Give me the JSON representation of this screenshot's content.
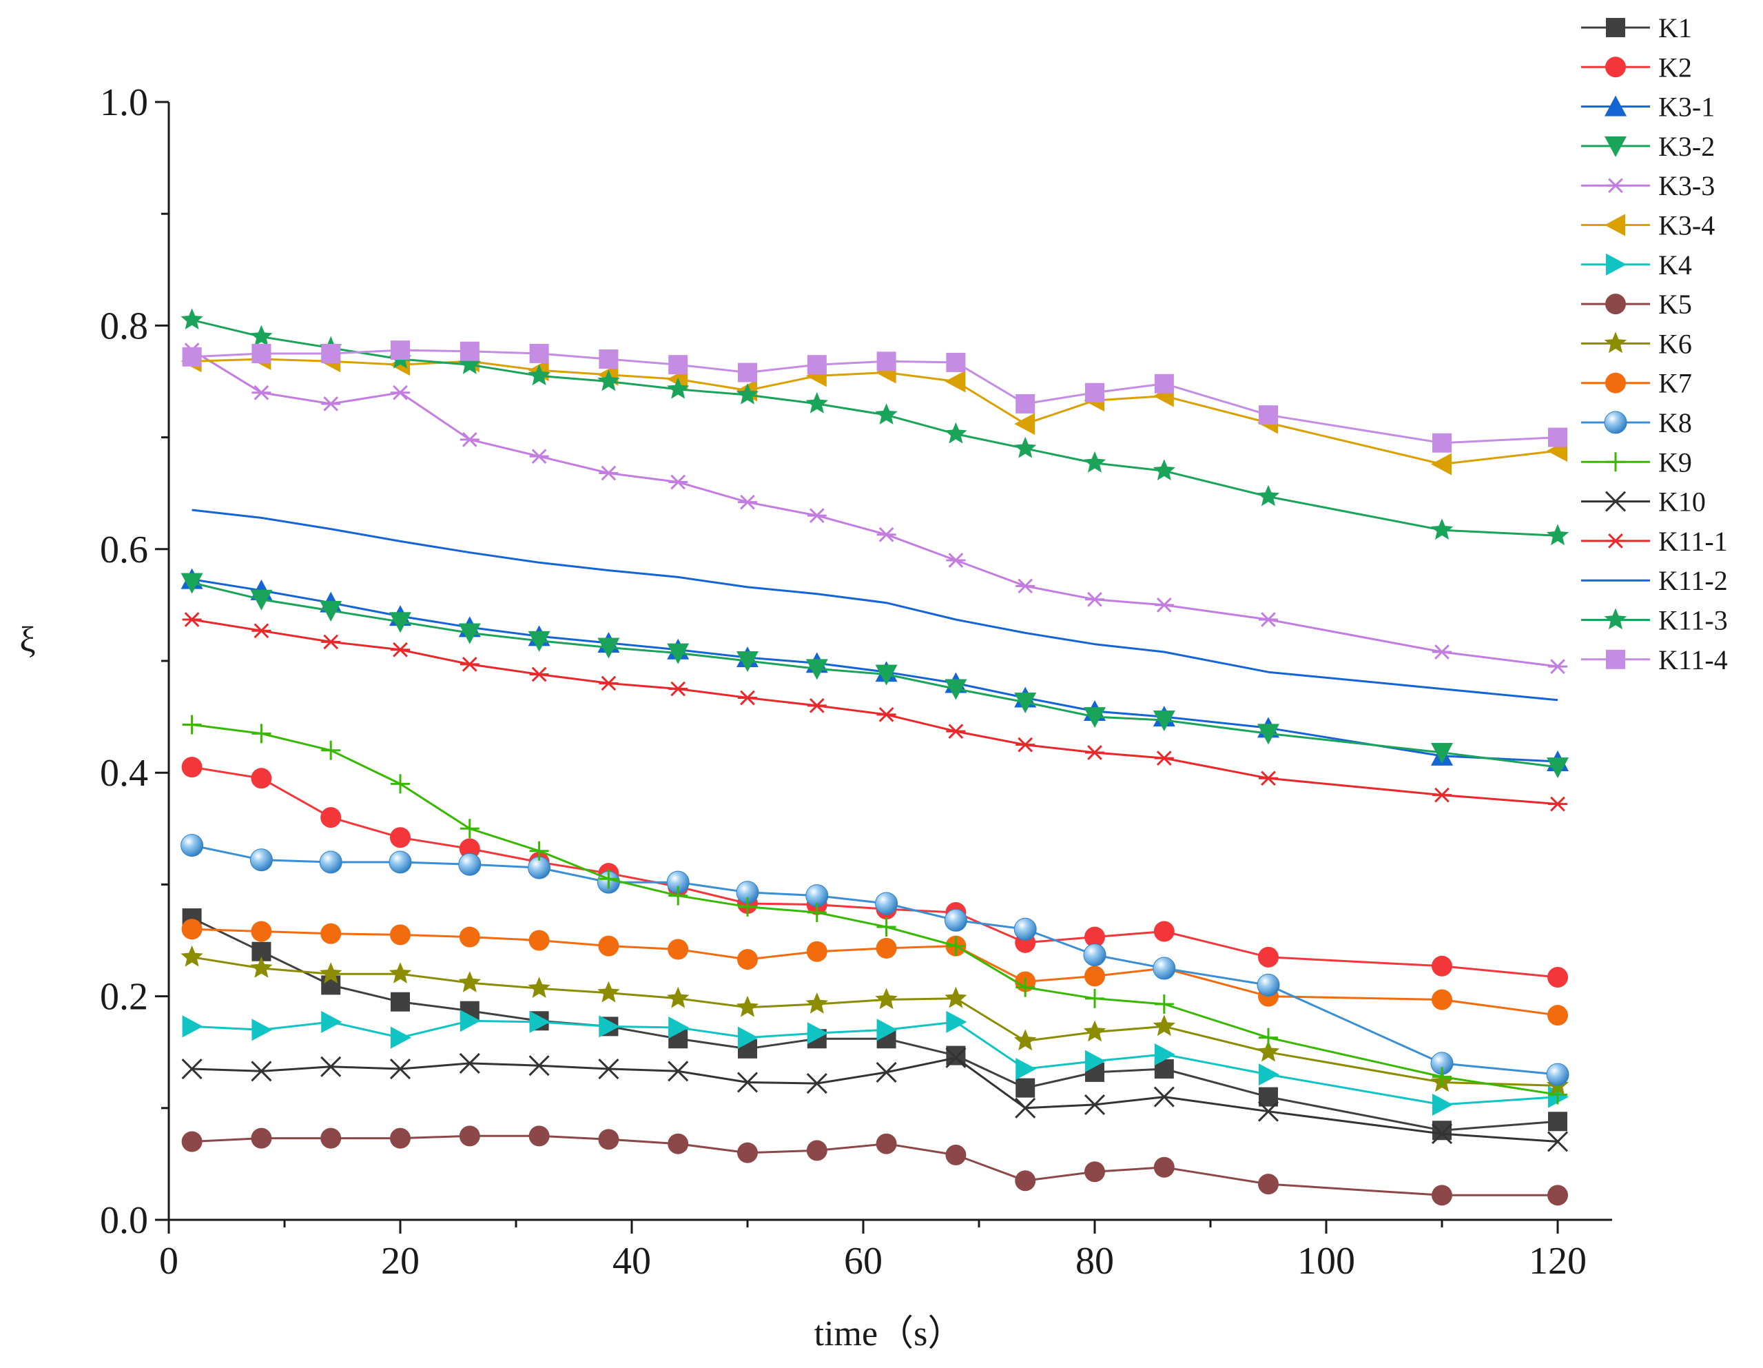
{
  "chart_data": {
    "type": "line",
    "title": "",
    "xlabel": "time（s）",
    "ylabel": "ξ",
    "xlim": [
      0,
      125
    ],
    "ylim": [
      0,
      1.0
    ],
    "xticks": [
      0,
      20,
      40,
      60,
      80,
      100,
      120
    ],
    "xtick_labels": [
      "0",
      "20",
      "40",
      "60",
      "80",
      "100",
      "120"
    ],
    "yticks": [
      0.0,
      0.2,
      0.4,
      0.6,
      0.8,
      1.0
    ],
    "ytick_labels": [
      "0.0",
      "0.2",
      "0.4",
      "0.6",
      "0.8",
      "1.0"
    ],
    "legend_position": "top-right outside",
    "series": [
      {
        "name": "K1",
        "color": "#404040",
        "marker": "square",
        "x": [
          2,
          8,
          14,
          20,
          26,
          32,
          38,
          44,
          50,
          56,
          62,
          68,
          74,
          80,
          86,
          95,
          110,
          120
        ],
        "y": [
          0.27,
          0.24,
          0.21,
          0.195,
          0.187,
          0.178,
          0.173,
          0.162,
          0.153,
          0.162,
          0.162,
          0.147,
          0.118,
          0.132,
          0.135,
          0.11,
          0.08,
          0.088
        ]
      },
      {
        "name": "K2",
        "color": "#f2363a",
        "marker": "circle",
        "x": [
          2,
          8,
          14,
          20,
          26,
          32,
          38,
          44,
          50,
          56,
          62,
          68,
          74,
          80,
          86,
          95,
          110,
          120
        ],
        "y": [
          0.405,
          0.395,
          0.36,
          0.342,
          0.332,
          0.32,
          0.31,
          0.298,
          0.283,
          0.282,
          0.278,
          0.275,
          0.248,
          0.253,
          0.258,
          0.235,
          0.227,
          0.217
        ]
      },
      {
        "name": "K3-1",
        "color": "#1464d4",
        "marker": "triangle-up",
        "x": [
          2,
          8,
          14,
          20,
          26,
          32,
          38,
          44,
          50,
          56,
          62,
          68,
          74,
          80,
          86,
          95,
          110,
          120
        ],
        "y": [
          0.573,
          0.563,
          0.552,
          0.54,
          0.53,
          0.522,
          0.516,
          0.51,
          0.503,
          0.498,
          0.49,
          0.48,
          0.467,
          0.455,
          0.45,
          0.44,
          0.415,
          0.41
        ]
      },
      {
        "name": "K3-2",
        "color": "#1aa45a",
        "marker": "triangle-down",
        "x": [
          2,
          8,
          14,
          20,
          26,
          32,
          38,
          44,
          50,
          56,
          62,
          68,
          74,
          80,
          86,
          95,
          110,
          120
        ],
        "y": [
          0.57,
          0.555,
          0.545,
          0.535,
          0.525,
          0.518,
          0.512,
          0.507,
          0.5,
          0.493,
          0.488,
          0.475,
          0.463,
          0.45,
          0.447,
          0.435,
          0.418,
          0.405
        ]
      },
      {
        "name": "K3-3",
        "color": "#c37de0",
        "marker": "asterisk",
        "x": [
          2,
          8,
          14,
          20,
          26,
          32,
          38,
          44,
          50,
          56,
          62,
          68,
          74,
          80,
          86,
          95,
          110,
          120
        ],
        "y": [
          0.778,
          0.74,
          0.73,
          0.74,
          0.698,
          0.683,
          0.668,
          0.66,
          0.642,
          0.63,
          0.613,
          0.59,
          0.567,
          0.555,
          0.55,
          0.537,
          0.508,
          0.495
        ]
      },
      {
        "name": "K3-4",
        "color": "#d9a000",
        "marker": "triangle-left",
        "x": [
          2,
          8,
          14,
          20,
          26,
          32,
          38,
          44,
          50,
          56,
          62,
          68,
          74,
          80,
          86,
          95,
          110,
          120
        ],
        "y": [
          0.768,
          0.77,
          0.768,
          0.765,
          0.768,
          0.76,
          0.756,
          0.752,
          0.742,
          0.755,
          0.758,
          0.75,
          0.712,
          0.733,
          0.737,
          0.713,
          0.676,
          0.688
        ]
      },
      {
        "name": "K4",
        "color": "#10c4c4",
        "marker": "triangle-right",
        "x": [
          2,
          8,
          14,
          20,
          26,
          32,
          38,
          44,
          50,
          56,
          62,
          68,
          74,
          80,
          86,
          95,
          110,
          120
        ],
        "y": [
          0.173,
          0.17,
          0.177,
          0.163,
          0.178,
          0.177,
          0.173,
          0.172,
          0.163,
          0.167,
          0.17,
          0.177,
          0.135,
          0.142,
          0.148,
          0.13,
          0.103,
          0.11
        ]
      },
      {
        "name": "K5",
        "color": "#8c4848",
        "marker": "circle",
        "x": [
          2,
          8,
          14,
          20,
          26,
          32,
          38,
          44,
          50,
          56,
          62,
          68,
          74,
          80,
          86,
          95,
          110,
          120
        ],
        "y": [
          0.07,
          0.073,
          0.073,
          0.073,
          0.075,
          0.075,
          0.072,
          0.068,
          0.06,
          0.062,
          0.068,
          0.058,
          0.035,
          0.043,
          0.047,
          0.032,
          0.022,
          0.022
        ]
      },
      {
        "name": "K6",
        "color": "#8c8c00",
        "marker": "star",
        "x": [
          2,
          8,
          14,
          20,
          26,
          32,
          38,
          44,
          50,
          56,
          62,
          68,
          74,
          80,
          86,
          95,
          110,
          120
        ],
        "y": [
          0.235,
          0.225,
          0.22,
          0.22,
          0.212,
          0.207,
          0.203,
          0.198,
          0.19,
          0.193,
          0.197,
          0.198,
          0.16,
          0.168,
          0.173,
          0.15,
          0.123,
          0.12
        ]
      },
      {
        "name": "K7",
        "color": "#f26b0c",
        "marker": "circle",
        "x": [
          2,
          8,
          14,
          20,
          26,
          32,
          38,
          44,
          50,
          56,
          62,
          68,
          74,
          80,
          86,
          95,
          110,
          120
        ],
        "y": [
          0.26,
          0.258,
          0.256,
          0.255,
          0.253,
          0.25,
          0.245,
          0.242,
          0.233,
          0.24,
          0.243,
          0.245,
          0.213,
          0.218,
          0.225,
          0.2,
          0.197,
          0.183
        ]
      },
      {
        "name": "K8",
        "color": "#3a8fd4",
        "marker": "circle",
        "x": [
          2,
          8,
          14,
          20,
          26,
          32,
          38,
          44,
          50,
          56,
          62,
          68,
          74,
          80,
          86,
          95,
          110,
          120
        ],
        "y": [
          0.335,
          0.322,
          0.32,
          0.32,
          0.318,
          0.315,
          0.302,
          0.302,
          0.293,
          0.29,
          0.283,
          0.268,
          0.26,
          0.237,
          0.225,
          0.21,
          0.14,
          0.13
        ]
      },
      {
        "name": "K9",
        "color": "#38b800",
        "marker": "plus",
        "x": [
          2,
          8,
          14,
          20,
          26,
          32,
          38,
          44,
          50,
          56,
          62,
          68,
          74,
          80,
          86,
          95,
          110,
          120
        ],
        "y": [
          0.443,
          0.435,
          0.42,
          0.39,
          0.35,
          0.33,
          0.305,
          0.29,
          0.28,
          0.275,
          0.262,
          0.245,
          0.208,
          0.198,
          0.193,
          0.163,
          0.128,
          0.112
        ]
      },
      {
        "name": "K10",
        "color": "#333333",
        "marker": "x",
        "x": [
          2,
          8,
          14,
          20,
          26,
          32,
          38,
          44,
          50,
          56,
          62,
          68,
          74,
          80,
          86,
          95,
          110,
          120
        ],
        "y": [
          0.135,
          0.133,
          0.137,
          0.135,
          0.14,
          0.138,
          0.135,
          0.133,
          0.123,
          0.122,
          0.132,
          0.145,
          0.1,
          0.103,
          0.11,
          0.097,
          0.077,
          0.07
        ]
      },
      {
        "name": "K11-1",
        "color": "#e8282a",
        "marker": "asterisk",
        "x": [
          2,
          8,
          14,
          20,
          26,
          32,
          38,
          44,
          50,
          56,
          62,
          68,
          74,
          80,
          86,
          95,
          110,
          120
        ],
        "y": [
          0.537,
          0.527,
          0.517,
          0.51,
          0.497,
          0.488,
          0.48,
          0.475,
          0.467,
          0.46,
          0.452,
          0.437,
          0.425,
          0.418,
          0.413,
          0.395,
          0.38,
          0.372
        ]
      },
      {
        "name": "K11-2",
        "color": "#1464d4",
        "marker": "none",
        "x": [
          2,
          8,
          14,
          20,
          26,
          32,
          38,
          44,
          50,
          56,
          62,
          68,
          74,
          80,
          86,
          95,
          110,
          120
        ],
        "y": [
          0.635,
          0.628,
          0.618,
          0.607,
          0.597,
          0.588,
          0.581,
          0.575,
          0.566,
          0.56,
          0.552,
          0.537,
          0.525,
          0.515,
          0.508,
          0.49,
          0.475,
          0.465
        ]
      },
      {
        "name": "K11-3",
        "color": "#1aa45a",
        "marker": "star",
        "x": [
          2,
          8,
          14,
          20,
          26,
          32,
          38,
          44,
          50,
          56,
          62,
          68,
          74,
          80,
          86,
          95,
          110,
          120
        ],
        "y": [
          0.805,
          0.79,
          0.78,
          0.77,
          0.765,
          0.755,
          0.75,
          0.743,
          0.738,
          0.73,
          0.72,
          0.703,
          0.69,
          0.677,
          0.67,
          0.647,
          0.617,
          0.612
        ]
      },
      {
        "name": "K11-4",
        "color": "#c58ce4",
        "marker": "square",
        "x": [
          2,
          8,
          14,
          20,
          26,
          32,
          38,
          44,
          50,
          56,
          62,
          68,
          74,
          80,
          86,
          95,
          110,
          120
        ],
        "y": [
          0.772,
          0.775,
          0.775,
          0.778,
          0.777,
          0.775,
          0.77,
          0.765,
          0.758,
          0.765,
          0.768,
          0.767,
          0.73,
          0.74,
          0.748,
          0.72,
          0.695,
          0.7
        ]
      }
    ]
  }
}
